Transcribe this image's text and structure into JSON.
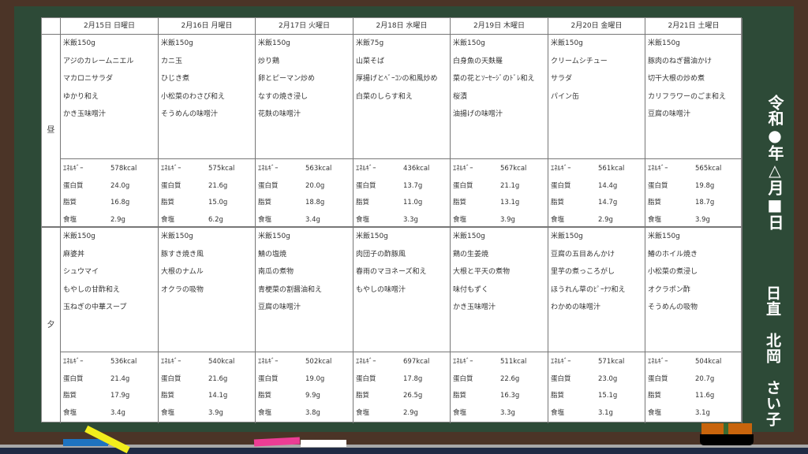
{
  "colors": {
    "board": "#2d4a37",
    "frame": "#4b3427",
    "chalk_blue": "#1e73c0",
    "chalk_yellow": "#f2ee1c",
    "chalk_pink": "#ec3d95",
    "chalk_white": "#ffffff",
    "eraser": "#c8640c"
  },
  "side": {
    "date": "令和●年△月■日",
    "duty": "日直　北岡　さい子"
  },
  "rows": [
    "昼",
    "夕"
  ],
  "days": [
    {
      "header": "2月15日 日曜日",
      "lunch": {
        "menu": [
          "米飯150g",
          "アジのカレームニエル",
          "マカロニサラダ",
          "ゆかり和え",
          "かき玉味噌汁"
        ],
        "nut": [
          "578kcal",
          "24.0g",
          "16.8g",
          "2.9g"
        ]
      },
      "dinner": {
        "menu": [
          "米飯150g",
          "麻婆丼",
          "シュウマイ",
          "もやしの甘酢和え",
          "玉ねぎの中華スープ"
        ],
        "nut": [
          "536kcal",
          "21.4g",
          "17.9g",
          "3.4g"
        ]
      }
    },
    {
      "header": "2月16日 月曜日",
      "lunch": {
        "menu": [
          "米飯150g",
          "カニ玉",
          "ひじき煮",
          "小松菜のわさび和え",
          "そうめんの味噌汁"
        ],
        "nut": [
          "575kcal",
          "21.6g",
          "15.0g",
          "6.2g"
        ]
      },
      "dinner": {
        "menu": [
          "米飯150g",
          "豚すき焼き風",
          "大根のナムル",
          "オクラの吸物"
        ],
        "nut": [
          "540kcal",
          "21.6g",
          "14.1g",
          "3.9g"
        ]
      }
    },
    {
      "header": "2月17日 火曜日",
      "lunch": {
        "menu": [
          "米飯150g",
          "炒り鶏",
          "卵とピーマン炒め",
          "なすの焼き浸し",
          "花麩の味噌汁"
        ],
        "nut": [
          "563kcal",
          "20.0g",
          "18.8g",
          "3.4g"
        ]
      },
      "dinner": {
        "menu": [
          "米飯150g",
          "鯖の塩焼",
          "南瓜の煮物",
          "青梗菜の割醤油和え",
          "豆腐の味噌汁"
        ],
        "nut": [
          "502kcal",
          "19.0g",
          "9.9g",
          "3.8g"
        ]
      }
    },
    {
      "header": "2月18日 水曜日",
      "lunch": {
        "menu": [
          "米飯75g",
          "山菜そば",
          "厚揚げとﾍﾞｰｺﾝの和風炒め",
          "白菜のしらす和え"
        ],
        "nut": [
          "436kcal",
          "13.7g",
          "11.0g",
          "3.3g"
        ]
      },
      "dinner": {
        "menu": [
          "米飯150g",
          "肉団子の酢豚風",
          "春雨のマヨネーズ和え",
          "もやしの味噌汁"
        ],
        "nut": [
          "697kcal",
          "17.8g",
          "26.5g",
          "2.9g"
        ]
      }
    },
    {
      "header": "2月19日 木曜日",
      "lunch": {
        "menu": [
          "米飯150g",
          "白身魚の天麩羅",
          "菜の花とｿｰｾｰｼﾞのﾄﾞﾚ和え",
          "桜漬",
          "油揚げの味噌汁"
        ],
        "nut": [
          "567kcal",
          "21.1g",
          "13.1g",
          "3.9g"
        ]
      },
      "dinner": {
        "menu": [
          "米飯150g",
          "鶏の生姜焼",
          "大根と平天の煮物",
          "味付もずく",
          "かき玉味噌汁"
        ],
        "nut": [
          "511kcal",
          "22.6g",
          "16.3g",
          "3.3g"
        ]
      }
    },
    {
      "header": "2月20日 金曜日",
      "lunch": {
        "menu": [
          "米飯150g",
          "クリームシチュー",
          "サラダ",
          "パイン缶"
        ],
        "nut": [
          "561kcal",
          "14.4g",
          "14.7g",
          "2.9g"
        ]
      },
      "dinner": {
        "menu": [
          "米飯150g",
          "豆腐の五目あんかけ",
          "里芋の煮っころがし",
          "ほうれん草のﾋﾟｰﾅﾂ和え",
          "わかめの味噌汁"
        ],
        "nut": [
          "571kcal",
          "23.0g",
          "15.1g",
          "3.1g"
        ]
      }
    },
    {
      "header": "2月21日 土曜日",
      "lunch": {
        "menu": [
          "米飯150g",
          "豚肉のねぎ醤油かけ",
          "切干大根の炒め煮",
          "カリフラワーのごま和え",
          "豆腐の味噌汁"
        ],
        "nut": [
          "565kcal",
          "19.8g",
          "18.7g",
          "3.9g"
        ]
      },
      "dinner": {
        "menu": [
          "米飯150g",
          "鰆のホイル焼き",
          "小松菜の煮浸し",
          "オクラポン酢",
          "そうめんの吸物"
        ],
        "nut": [
          "504kcal",
          "20.7g",
          "11.6g",
          "3.1g"
        ]
      }
    }
  ],
  "nutrient_labels": [
    "ｴﾈﾙｷﾞｰ",
    "蛋白質",
    "脂質",
    "食塩"
  ]
}
